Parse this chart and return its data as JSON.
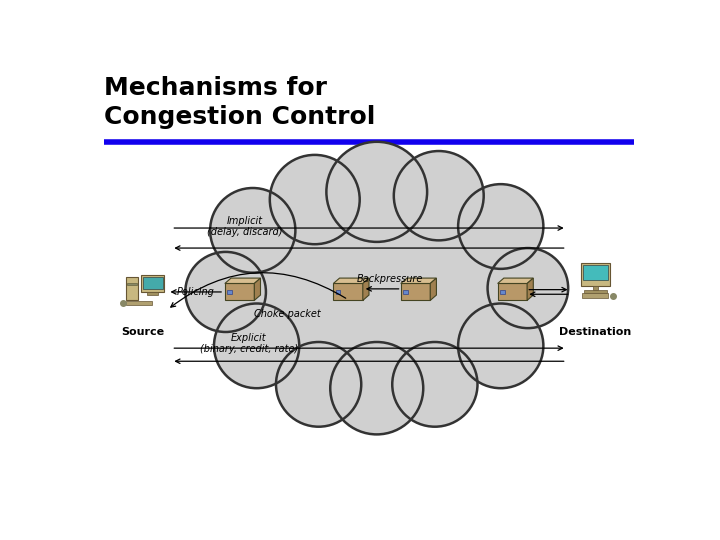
{
  "title_line1": "Mechanisms for",
  "title_line2": "Congestion Control",
  "title_color": "#000000",
  "title_fontsize": 18,
  "title_fontweight": "bold",
  "separator_color": "#1100EE",
  "bg_color": "#ffffff",
  "cloud_fill": "#d0d0d0",
  "cloud_edge": "#333333",
  "arrow_color": "#000000",
  "label_implicit": "Implicit\n(delay, discard)",
  "label_policing": "Policing",
  "label_backpressure": "Backpressure",
  "label_choke": "Choke packet",
  "label_explicit": "Explicit\n(binary, credit, rate)",
  "label_source": "Source",
  "label_destination": "Destination",
  "cloud_bumps_x": [
    370,
    290,
    210,
    175,
    215,
    295,
    370,
    445,
    530,
    565,
    530,
    450
  ],
  "cloud_bumps_y": [
    165,
    175,
    215,
    295,
    365,
    415,
    420,
    415,
    365,
    290,
    210,
    170
  ],
  "cloud_bumps_r": [
    65,
    58,
    55,
    52,
    55,
    55,
    60,
    55,
    55,
    52,
    55,
    58
  ]
}
